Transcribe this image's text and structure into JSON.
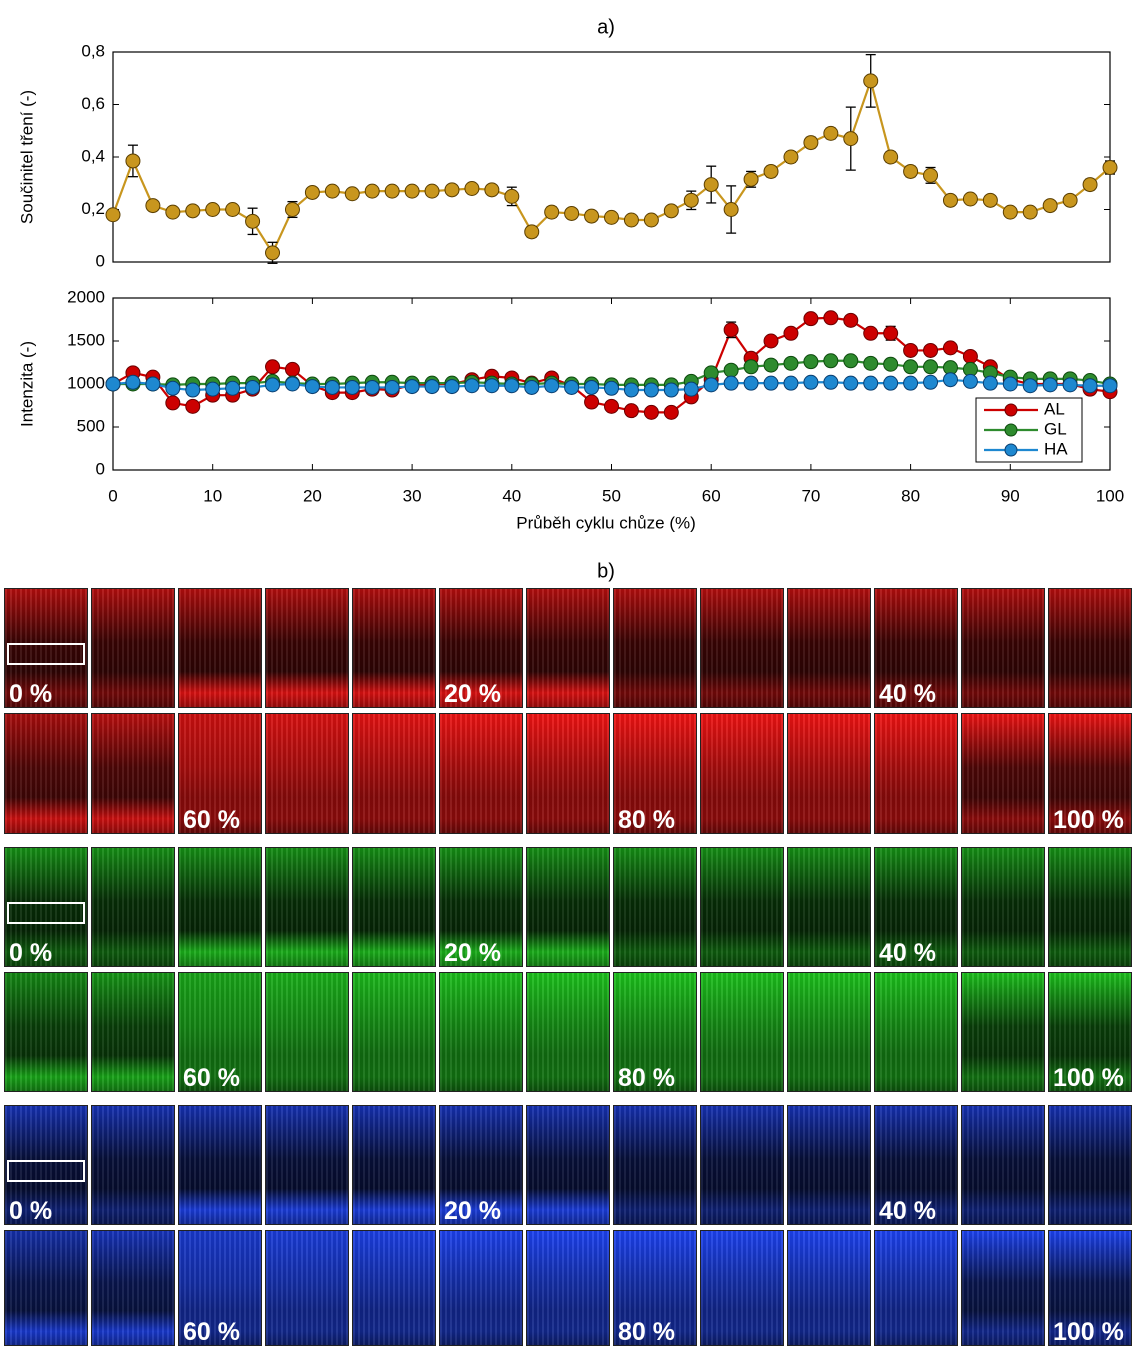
{
  "chart_data": [
    {
      "type": "line",
      "title": "a)",
      "ylabel": "Součinitel tření (-)",
      "x": [
        0,
        2,
        4,
        6,
        8,
        10,
        12,
        14,
        16,
        18,
        20,
        22,
        24,
        26,
        28,
        30,
        32,
        34,
        36,
        38,
        40,
        42,
        44,
        46,
        48,
        50,
        52,
        54,
        56,
        58,
        60,
        62,
        64,
        66,
        68,
        70,
        72,
        74,
        76,
        78,
        80,
        82,
        84,
        86,
        88,
        90,
        92,
        94,
        96,
        98,
        100
      ],
      "series": [
        {
          "color": "#c8961e",
          "values": [
            0.18,
            0.385,
            0.215,
            0.19,
            0.195,
            0.2,
            0.2,
            0.155,
            0.035,
            0.2,
            0.265,
            0.27,
            0.26,
            0.27,
            0.27,
            0.27,
            0.27,
            0.275,
            0.28,
            0.275,
            0.25,
            0.115,
            0.19,
            0.185,
            0.175,
            0.17,
            0.16,
            0.16,
            0.195,
            0.235,
            0.295,
            0.2,
            0.315,
            0.345,
            0.4,
            0.455,
            0.49,
            0.47,
            0.69,
            0.4,
            0.345,
            0.33,
            0.235,
            0.24,
            0.235,
            0.19,
            0.19,
            0.215,
            0.235,
            0.295,
            0.36
          ],
          "errors": [
            0.01,
            0.06,
            0.01,
            0.01,
            0.01,
            0.01,
            0.01,
            0.05,
            0.04,
            0.03,
            0.01,
            0.01,
            0.01,
            0.01,
            0.01,
            0.01,
            0.01,
            0.01,
            0.01,
            0.01,
            0.035,
            0.02,
            0.02,
            0.01,
            0.01,
            0.01,
            0.01,
            0.01,
            0.01,
            0.035,
            0.07,
            0.09,
            0.03,
            0.02,
            0.02,
            0.02,
            0.02,
            0.12,
            0.1,
            0.02,
            0.02,
            0.03,
            0.01,
            0.01,
            0.01,
            0.01,
            0.01,
            0.01,
            0.01,
            0.02,
            0.025
          ]
        }
      ],
      "xlim": [
        0,
        100
      ],
      "ylim": [
        0,
        0.8
      ],
      "yticks": [
        0,
        {
          "value": 0.2,
          "label": "0,2"
        },
        {
          "value": 0.4,
          "label": "0,4"
        },
        {
          "value": 0.6,
          "label": "0,6"
        },
        {
          "value": 0.8,
          "label": "0,8"
        }
      ]
    },
    {
      "type": "line",
      "ylabel": "Intenzita (-)",
      "xlabel": "Průběh cyklu chůze (%)",
      "x": [
        0,
        2,
        4,
        6,
        8,
        10,
        12,
        14,
        16,
        18,
        20,
        22,
        24,
        26,
        28,
        30,
        32,
        34,
        36,
        38,
        40,
        42,
        44,
        46,
        48,
        50,
        52,
        54,
        56,
        58,
        60,
        62,
        64,
        66,
        68,
        70,
        72,
        74,
        76,
        78,
        80,
        82,
        84,
        86,
        88,
        90,
        92,
        94,
        96,
        98,
        100
      ],
      "series": [
        {
          "name": "AL",
          "color": "#cc0000",
          "values": [
            1000,
            1130,
            1080,
            780,
            740,
            870,
            870,
            940,
            1200,
            1170,
            980,
            900,
            900,
            940,
            930,
            990,
            1000,
            1000,
            1050,
            1090,
            1070,
            1010,
            1070,
            980,
            790,
            740,
            690,
            670,
            670,
            850,
            1050,
            1630,
            1300,
            1500,
            1590,
            1760,
            1770,
            1740,
            1590,
            1590,
            1390,
            1390,
            1420,
            1320,
            1200,
            1050,
            1000,
            1000,
            1000,
            940,
            910
          ],
          "errors": [
            20,
            20,
            20,
            20,
            20,
            20,
            20,
            20,
            20,
            20,
            20,
            20,
            20,
            20,
            20,
            20,
            20,
            20,
            20,
            20,
            20,
            20,
            20,
            20,
            20,
            20,
            20,
            20,
            20,
            20,
            20,
            90,
            20,
            20,
            20,
            30,
            30,
            30,
            30,
            80,
            20,
            20,
            20,
            20,
            20,
            20,
            20,
            20,
            20,
            20,
            20
          ]
        },
        {
          "name": "GL",
          "color": "#2e8b2e",
          "values": [
            1000,
            1000,
            1000,
            990,
            1000,
            1000,
            1010,
            1010,
            1030,
            1010,
            1000,
            1000,
            1010,
            1020,
            1020,
            1010,
            1010,
            1010,
            1020,
            1010,
            1000,
            1000,
            1010,
            1000,
            1000,
            990,
            990,
            990,
            990,
            1030,
            1130,
            1160,
            1200,
            1220,
            1240,
            1260,
            1270,
            1270,
            1240,
            1230,
            1200,
            1200,
            1190,
            1170,
            1130,
            1080,
            1060,
            1060,
            1060,
            1040,
            1000
          ]
        },
        {
          "name": "HA",
          "color": "#1e88d0",
          "values": [
            1000,
            1020,
            1000,
            950,
            930,
            940,
            950,
            960,
            990,
            1000,
            970,
            960,
            960,
            960,
            960,
            970,
            970,
            970,
            980,
            980,
            980,
            960,
            980,
            960,
            960,
            950,
            930,
            930,
            930,
            940,
            990,
            1010,
            1010,
            1010,
            1010,
            1020,
            1020,
            1010,
            1010,
            1010,
            1010,
            1020,
            1050,
            1030,
            1010,
            1000,
            980,
            990,
            990,
            980,
            980
          ]
        }
      ],
      "xlim": [
        0,
        100
      ],
      "ylim": [
        0,
        2000
      ],
      "xticks": [
        0,
        10,
        20,
        30,
        40,
        50,
        60,
        70,
        80,
        90,
        100
      ],
      "yticks": [
        0,
        500,
        1000,
        1500,
        2000
      ],
      "legend": "lower right"
    }
  ],
  "panel_b": {
    "title": "b)",
    "labels": [
      "0 %",
      "20 %",
      "40 %",
      "60 %",
      "80 %",
      "100 %"
    ]
  }
}
